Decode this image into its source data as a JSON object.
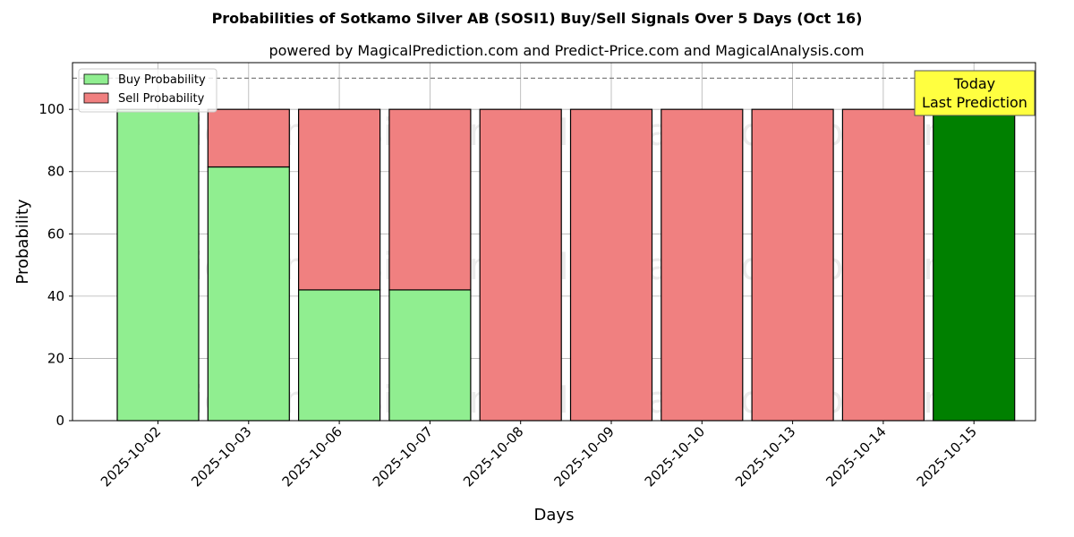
{
  "chart_data": {
    "type": "bar",
    "stacked": true,
    "title": "Probabilities of Sotkamo Silver AB (SOSI1) Buy/Sell Signals Over 5 Days (Oct 16)",
    "subtitle": "powered by MagicalPrediction.com and Predict-Price.com and MagicalAnalysis.com",
    "xlabel": "Days",
    "ylabel": "Probability",
    "ylim": [
      0,
      115
    ],
    "yticks": [
      0,
      20,
      40,
      60,
      80,
      100
    ],
    "grid": true,
    "legend_placement": "top-left",
    "categories": [
      "2025-10-02",
      "2025-10-03",
      "2025-10-06",
      "2025-10-07",
      "2025-10-08",
      "2025-10-09",
      "2025-10-10",
      "2025-10-13",
      "2025-10-14",
      "2025-10-15"
    ],
    "series": [
      {
        "name": "Buy Probability",
        "color": "#90ee90",
        "values": [
          100,
          81.5,
          42,
          42,
          0,
          0,
          0,
          0,
          0,
          100
        ]
      },
      {
        "name": "Sell Probability",
        "color": "#f08080",
        "values": [
          0,
          18.5,
          58,
          58,
          100,
          100,
          100,
          100,
          100,
          0
        ]
      }
    ],
    "highlight": {
      "category": "2025-10-15",
      "color": "#008000"
    },
    "reference_line": {
      "y": 110,
      "style": "dashed",
      "color": "#808080"
    },
    "annotation": {
      "lines": [
        "Today",
        "Last Prediction"
      ],
      "category": "2025-10-15",
      "background": "#ffff40"
    },
    "watermarks": [
      "MagicalAnalysis.com",
      "MagicalPrediction.com"
    ]
  }
}
